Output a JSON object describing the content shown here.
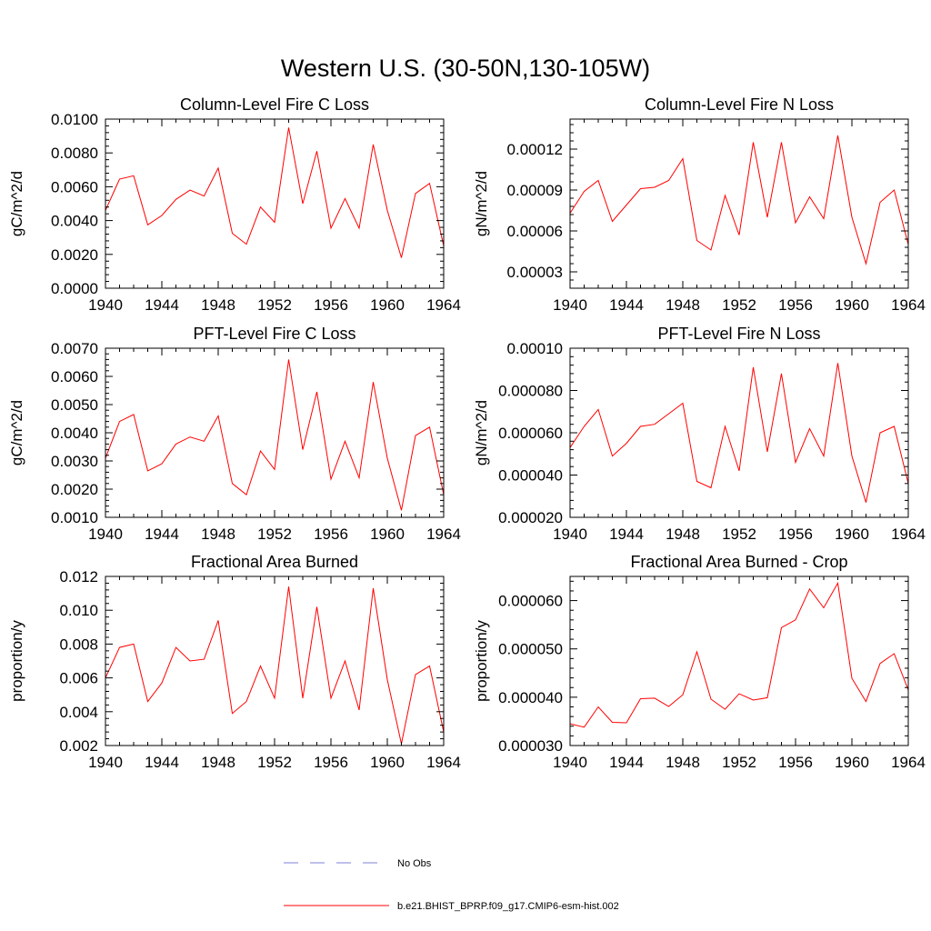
{
  "figure": {
    "title": "Western U.S. (30-50N,130-105W)"
  },
  "colors": {
    "model_line": "#ff0000",
    "obs_line": "#7f7fd8",
    "frame": "#000000"
  },
  "legend": {
    "items": [
      {
        "label": "No Obs",
        "style": "dashed",
        "color": "#7f7fd8"
      },
      {
        "label": "b.e21.BHIST_BPRP.f09_g17.CMIP6-esm-hist.002",
        "style": "solid",
        "color": "#ff0000"
      }
    ]
  },
  "chart_data": [
    {
      "type": "line",
      "title": "Column-Level Fire C Loss",
      "ylabel": "gC/m^2/d",
      "xlim": [
        1940,
        1964
      ],
      "ylim": [
        0.0,
        0.01
      ],
      "xticks": [
        1940,
        1944,
        1948,
        1952,
        1956,
        1960,
        1964
      ],
      "yticks": [
        0.0,
        0.002,
        0.004,
        0.006,
        0.008,
        0.01
      ],
      "ytick_labels": [
        "0.0000",
        "0.0020",
        "0.0040",
        "0.0060",
        "0.0080",
        "0.0100"
      ],
      "x": [
        1940,
        1941,
        1942,
        1943,
        1944,
        1945,
        1946,
        1947,
        1948,
        1949,
        1950,
        1951,
        1952,
        1953,
        1954,
        1955,
        1956,
        1957,
        1958,
        1959,
        1960,
        1961,
        1962,
        1963,
        1964
      ],
      "series": [
        {
          "name": "b.e21.BHIST_BPRP.f09_g17.CMIP6-esm-hist.002",
          "values": [
            0.0046,
            0.00645,
            0.00665,
            0.00375,
            0.0043,
            0.00525,
            0.0058,
            0.00545,
            0.0071,
            0.00325,
            0.0026,
            0.0048,
            0.0039,
            0.0095,
            0.005,
            0.0081,
            0.00355,
            0.0053,
            0.00355,
            0.0085,
            0.0046,
            0.0018,
            0.0056,
            0.0062,
            0.0025
          ]
        }
      ]
    },
    {
      "type": "line",
      "title": "Column-Level Fire N Loss",
      "ylabel": "gN/m^2/d",
      "xlim": [
        1940,
        1964
      ],
      "ylim": [
        1.8e-05,
        0.000142
      ],
      "xticks": [
        1940,
        1944,
        1948,
        1952,
        1956,
        1960,
        1964
      ],
      "yticks": [
        3e-05,
        6e-05,
        9e-05,
        0.00012
      ],
      "ytick_labels": [
        "0.00003",
        "0.00006",
        "0.00009",
        "0.00012"
      ],
      "x": [
        1940,
        1941,
        1942,
        1943,
        1944,
        1945,
        1946,
        1947,
        1948,
        1949,
        1950,
        1951,
        1952,
        1953,
        1954,
        1955,
        1956,
        1957,
        1958,
        1959,
        1960,
        1961,
        1962,
        1963,
        1964
      ],
      "series": [
        {
          "name": "b.e21.BHIST_BPRP.f09_g17.CMIP6-esm-hist.002",
          "values": [
            7.3e-05,
            8.9e-05,
            9.7e-05,
            6.7e-05,
            7.9e-05,
            9.1e-05,
            9.2e-05,
            9.7e-05,
            0.000113,
            5.3e-05,
            4.6e-05,
            8.6e-05,
            5.7e-05,
            0.000125,
            7e-05,
            0.000125,
            6.6e-05,
            8.5e-05,
            6.9e-05,
            0.00013,
            7e-05,
            3.6e-05,
            8.1e-05,
            9e-05,
            5e-05
          ]
        }
      ]
    },
    {
      "type": "line",
      "title": "PFT-Level Fire C Loss",
      "ylabel": "gC/m^2/d",
      "xlim": [
        1940,
        1964
      ],
      "ylim": [
        0.001,
        0.007
      ],
      "xticks": [
        1940,
        1944,
        1948,
        1952,
        1956,
        1960,
        1964
      ],
      "yticks": [
        0.001,
        0.002,
        0.003,
        0.004,
        0.005,
        0.006,
        0.007
      ],
      "ytick_labels": [
        "0.0010",
        "0.0020",
        "0.0030",
        "0.0040",
        "0.0050",
        "0.0060",
        "0.0070"
      ],
      "x": [
        1940,
        1941,
        1942,
        1943,
        1944,
        1945,
        1946,
        1947,
        1948,
        1949,
        1950,
        1951,
        1952,
        1953,
        1954,
        1955,
        1956,
        1957,
        1958,
        1959,
        1960,
        1961,
        1962,
        1963,
        1964
      ],
      "series": [
        {
          "name": "b.e21.BHIST_BPRP.f09_g17.CMIP6-esm-hist.002",
          "values": [
            0.0031,
            0.0044,
            0.00465,
            0.00265,
            0.0029,
            0.0036,
            0.00385,
            0.0037,
            0.0046,
            0.0022,
            0.0018,
            0.00335,
            0.0027,
            0.0066,
            0.0034,
            0.00545,
            0.00235,
            0.0037,
            0.0024,
            0.0058,
            0.0031,
            0.00125,
            0.0039,
            0.0042,
            0.0018
          ]
        }
      ]
    },
    {
      "type": "line",
      "title": "PFT-Level Fire N Loss",
      "ylabel": "gN/m^2/d",
      "xlim": [
        1940,
        1964
      ],
      "ylim": [
        2e-05,
        0.0001
      ],
      "xticks": [
        1940,
        1944,
        1948,
        1952,
        1956,
        1960,
        1964
      ],
      "yticks": [
        2e-05,
        4e-05,
        6e-05,
        8e-05,
        0.0001
      ],
      "ytick_labels": [
        "0.000020",
        "0.000040",
        "0.000060",
        "0.000080",
        "0.00010"
      ],
      "x": [
        1940,
        1941,
        1942,
        1943,
        1944,
        1945,
        1946,
        1947,
        1948,
        1949,
        1950,
        1951,
        1952,
        1953,
        1954,
        1955,
        1956,
        1957,
        1958,
        1959,
        1960,
        1961,
        1962,
        1963,
        1964
      ],
      "series": [
        {
          "name": "b.e21.BHIST_BPRP.f09_g17.CMIP6-esm-hist.002",
          "values": [
            5.3e-05,
            6.3e-05,
            7.1e-05,
            4.9e-05,
            5.5e-05,
            6.3e-05,
            6.4e-05,
            6.9e-05,
            7.4e-05,
            3.7e-05,
            3.4e-05,
            6.3e-05,
            4.2e-05,
            9.1e-05,
            5.1e-05,
            8.8e-05,
            4.6e-05,
            6.2e-05,
            4.9e-05,
            9.3e-05,
            4.9e-05,
            2.7e-05,
            6e-05,
            6.3e-05,
            3.6e-05
          ]
        }
      ]
    },
    {
      "type": "line",
      "title": "Fractional Area Burned",
      "ylabel": "proportion/y",
      "xlim": [
        1940,
        1964
      ],
      "ylim": [
        0.002,
        0.012
      ],
      "xticks": [
        1940,
        1944,
        1948,
        1952,
        1956,
        1960,
        1964
      ],
      "yticks": [
        0.002,
        0.004,
        0.006,
        0.008,
        0.01,
        0.012
      ],
      "ytick_labels": [
        "0.002",
        "0.004",
        "0.006",
        "0.008",
        "0.010",
        "0.012"
      ],
      "x": [
        1940,
        1941,
        1942,
        1943,
        1944,
        1945,
        1946,
        1947,
        1948,
        1949,
        1950,
        1951,
        1952,
        1953,
        1954,
        1955,
        1956,
        1957,
        1958,
        1959,
        1960,
        1961,
        1962,
        1963,
        1964
      ],
      "series": [
        {
          "name": "b.e21.BHIST_BPRP.f09_g17.CMIP6-esm-hist.002",
          "values": [
            0.006,
            0.0078,
            0.008,
            0.0046,
            0.0057,
            0.0078,
            0.007,
            0.0071,
            0.0094,
            0.0039,
            0.0046,
            0.0067,
            0.0048,
            0.0114,
            0.0048,
            0.0102,
            0.0048,
            0.007,
            0.0041,
            0.0113,
            0.0059,
            0.0021,
            0.0062,
            0.0067,
            0.0028
          ]
        }
      ]
    },
    {
      "type": "line",
      "title": "Fractional Area Burned - Crop",
      "ylabel": "proportion/y",
      "xlim": [
        1940,
        1964
      ],
      "ylim": [
        3e-05,
        6.5e-05
      ],
      "xticks": [
        1940,
        1944,
        1948,
        1952,
        1956,
        1960,
        1964
      ],
      "yticks": [
        3e-05,
        4e-05,
        5e-05,
        6e-05
      ],
      "ytick_labels": [
        "0.000030",
        "0.000040",
        "0.000050",
        "0.000060"
      ],
      "x": [
        1940,
        1941,
        1942,
        1943,
        1944,
        1945,
        1946,
        1947,
        1948,
        1949,
        1950,
        1951,
        1952,
        1953,
        1954,
        1955,
        1956,
        1957,
        1958,
        1959,
        1960,
        1961,
        1962,
        1963,
        1964
      ],
      "series": [
        {
          "name": "b.e21.BHIST_BPRP.f09_g17.CMIP6-esm-hist.002",
          "values": [
            3.45e-05,
            3.38e-05,
            3.8e-05,
            3.48e-05,
            3.47e-05,
            3.97e-05,
            3.98e-05,
            3.81e-05,
            4.05e-05,
            4.94e-05,
            3.96e-05,
            3.75e-05,
            4.07e-05,
            3.94e-05,
            3.99e-05,
            5.44e-05,
            5.6e-05,
            6.24e-05,
            5.85e-05,
            6.36e-05,
            4.39e-05,
            3.91e-05,
            4.7e-05,
            4.9e-05,
            4.15e-05
          ]
        }
      ]
    }
  ]
}
